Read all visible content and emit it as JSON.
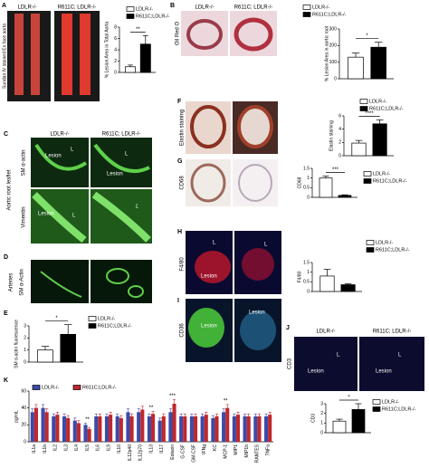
{
  "letters": [
    "A",
    "B",
    "C",
    "D",
    "E",
    "F",
    "G",
    "H",
    "I",
    "J",
    "K"
  ],
  "image_labels": {
    "a_top": [
      "LDLR-/-",
      "R611C; LDLR-/-"
    ],
    "a_side": "Sundan IV stained En face aorta",
    "b_top": [
      "LDLR-/-",
      "R611C; LDLR-/-"
    ],
    "b_side": "Oil Red O",
    "c_top": [
      "LDLR-/-",
      "R611C; LDLR-/-"
    ],
    "c_side": "Aortic root leaflet",
    "c_rows": [
      "SM α-actin",
      "Vimentin"
    ],
    "lesion": "Lesion",
    "lumen": "L",
    "lumen_it": "L",
    "d_side": [
      "Arteries",
      "SM α-Actin"
    ],
    "f_side": "Elastin staining",
    "g_side": "CD68",
    "h_side": "F4/80",
    "i_side": "CD36",
    "j_top": [
      "LDLR-/-",
      "R611C; LDLR-/-"
    ],
    "j_side": "CD3"
  },
  "chart_data": [
    {
      "type": "bar",
      "ylabel": "% Lesion Area in Total Aorta",
      "ylim": [
        0,
        8
      ],
      "yticks": [
        0,
        2,
        4,
        6,
        8
      ],
      "significance": "**",
      "series": [
        {
          "name": "LDLR-/-",
          "color": "#ffffff",
          "values": [
            1
          ],
          "errors": [
            0.3
          ]
        },
        {
          "name": "R611C;LDLR-/-",
          "color": "#000000",
          "values": [
            5
          ],
          "errors": [
            1.5
          ]
        }
      ]
    },
    {
      "type": "bar",
      "ylabel": "% Lesion Area  in aortic root",
      "ylim": [
        0,
        300
      ],
      "yticks": [
        0,
        100,
        200,
        300
      ],
      "significance": "*",
      "series": [
        {
          "name": "LDLR-/-",
          "color": "#ffffff",
          "values": [
            130
          ],
          "errors": [
            25
          ]
        },
        {
          "name": "R611C;LDLR-/-",
          "color": "#000000",
          "values": [
            190
          ],
          "errors": [
            30
          ]
        }
      ]
    },
    {
      "type": "bar",
      "ylabel": "Elastin staining",
      "ylim": [
        0,
        6
      ],
      "yticks": [
        0,
        2,
        4,
        6
      ],
      "significance": "****",
      "series": [
        {
          "name": "LDLR-/-",
          "color": "#ffffff",
          "values": [
            1.9
          ],
          "errors": [
            0.4
          ]
        },
        {
          "name": "R611C;LDLR-/-",
          "color": "#000000",
          "values": [
            4.8
          ],
          "errors": [
            0.6
          ]
        }
      ]
    },
    {
      "type": "bar",
      "ylabel": "CD68",
      "ylim": [
        0,
        1.5
      ],
      "yticks": [
        0,
        0.5,
        1,
        1.5
      ],
      "significance": "***",
      "series": [
        {
          "name": "LDLR-/-",
          "color": "#ffffff",
          "values": [
            1.0
          ],
          "errors": [
            0.1
          ]
        },
        {
          "name": "R611C;LDLR-/-",
          "color": "#000000",
          "values": [
            0.1
          ],
          "errors": [
            0.03
          ]
        }
      ]
    },
    {
      "type": "bar",
      "ylabel": "F4/80",
      "ylim": [
        0,
        1.5
      ],
      "yticks": [
        0,
        0.5,
        1,
        1.5
      ],
      "series": [
        {
          "name": "LDLR-/-",
          "color": "#ffffff",
          "values": [
            0.8
          ],
          "errors": [
            0.35
          ]
        },
        {
          "name": "R611C;LDLR-/-",
          "color": "#000000",
          "values": [
            0.35
          ],
          "errors": [
            0.05
          ]
        }
      ]
    },
    {
      "type": "bar",
      "ylabel": "SM α-actin fluorescence",
      "ylim": [
        0,
        3
      ],
      "yticks": [
        0,
        1,
        2,
        3
      ],
      "significance": "*",
      "series": [
        {
          "name": "LDLR-/-",
          "color": "#ffffff",
          "values": [
            1
          ],
          "errors": [
            0.3
          ]
        },
        {
          "name": "R611C;LDLR-/-",
          "color": "#000000",
          "values": [
            2.3
          ],
          "errors": [
            0.8
          ]
        }
      ]
    },
    {
      "type": "bar",
      "ylabel": "CD3",
      "ylim": [
        0,
        3
      ],
      "yticks": [
        0,
        1,
        2,
        3
      ],
      "significance": "*",
      "series": [
        {
          "name": "LDLR-/-",
          "color": "#ffffff",
          "values": [
            1.2
          ],
          "errors": [
            0.2
          ]
        },
        {
          "name": "R611C;LDLR-/-",
          "color": "#000000",
          "values": [
            2.4
          ],
          "errors": [
            0.6
          ]
        }
      ]
    },
    {
      "type": "grouped",
      "ylabel": "pg/mL",
      "ylim": [
        0,
        60
      ],
      "yticks": [
        0,
        20,
        40,
        60
      ],
      "categories": [
        "IL1a",
        "IL1b",
        "IL2",
        "IL3",
        "IL4",
        "IL5",
        "IL6",
        "IL9",
        "IL10",
        "IL12p40",
        "IL12p70",
        "IL13",
        "IL17",
        "Eotaxin",
        "G-CSF",
        "GM-CSF",
        "IFNg",
        "KC",
        "MCP-1",
        "MIP1",
        "MIP1b",
        "RANTES",
        "TNFa"
      ],
      "series": [
        {
          "name": "LDLR-/-",
          "color": "#3b4ba8",
          "values": [
            35,
            40,
            30,
            30,
            25,
            20,
            30,
            30,
            30,
            35,
            35,
            30,
            25,
            35,
            30,
            30,
            30,
            28,
            35,
            30,
            30,
            30,
            30
          ],
          "errors": [
            4,
            4,
            3,
            3,
            3,
            2,
            3,
            3,
            3,
            4,
            4,
            3,
            3,
            4,
            3,
            3,
            3,
            3,
            4,
            3,
            3,
            3,
            3
          ]
        },
        {
          "name": "R611C;LDLR-/-",
          "color": "#c0272d",
          "values": [
            40,
            35,
            32,
            28,
            22,
            15,
            30,
            32,
            28,
            30,
            38,
            33,
            30,
            45,
            30,
            30,
            32,
            30,
            40,
            32,
            30,
            30,
            32
          ],
          "errors": [
            4,
            4,
            3,
            3,
            3,
            2,
            3,
            3,
            3,
            3,
            4,
            3,
            3,
            5,
            3,
            3,
            3,
            3,
            4,
            3,
            3,
            3,
            3
          ]
        }
      ],
      "annotations": [
        {
          "text": "**",
          "category": "IL5"
        },
        {
          "text": "**",
          "category": "IL13"
        },
        {
          "text": "***",
          "category": "Eotaxin"
        },
        {
          "text": "**",
          "category": "MCP-1"
        }
      ]
    }
  ]
}
